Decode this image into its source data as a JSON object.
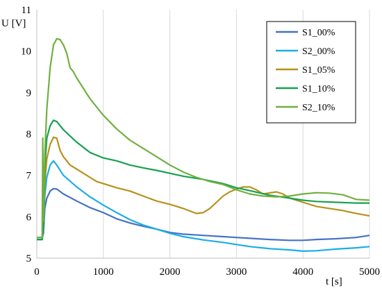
{
  "chart_data": {
    "type": "line",
    "title": "",
    "xlabel": "t [s]",
    "ylabel": "U [V]",
    "xlim": [
      0,
      5000
    ],
    "ylim": [
      5,
      11
    ],
    "xticks": [
      0,
      1000,
      2000,
      3000,
      4000,
      5000
    ],
    "yticks": [
      5,
      6,
      7,
      8,
      9,
      10,
      11
    ],
    "xtick_labels": [
      "0",
      "1000",
      "2000",
      "3000",
      "4000",
      "5000"
    ],
    "ytick_labels": [
      "5",
      "6",
      "7",
      "8",
      "9",
      "10",
      "11"
    ],
    "grid": "vertical",
    "legend": {
      "position": "top-right",
      "entries": [
        "S1_00%",
        "S2_00%",
        "S1_05%",
        "S1_10%",
        "S2_10%"
      ]
    },
    "series": [
      {
        "name": "S1_00%",
        "color": "#4472C4",
        "points": [
          [
            0,
            5.5
          ],
          [
            80,
            5.5
          ],
          [
            100,
            5.6
          ],
          [
            120,
            6.2
          ],
          [
            150,
            6.45
          ],
          [
            200,
            6.62
          ],
          [
            250,
            6.68
          ],
          [
            300,
            6.67
          ],
          [
            400,
            6.55
          ],
          [
            600,
            6.38
          ],
          [
            800,
            6.22
          ],
          [
            1000,
            6.1
          ],
          [
            1200,
            5.95
          ],
          [
            1400,
            5.85
          ],
          [
            1600,
            5.77
          ],
          [
            1800,
            5.7
          ],
          [
            2000,
            5.62
          ],
          [
            2200,
            5.58
          ],
          [
            2500,
            5.55
          ],
          [
            2800,
            5.52
          ],
          [
            3000,
            5.5
          ],
          [
            3200,
            5.48
          ],
          [
            3500,
            5.45
          ],
          [
            3800,
            5.43
          ],
          [
            4000,
            5.43
          ],
          [
            4200,
            5.45
          ],
          [
            4500,
            5.47
          ],
          [
            4800,
            5.5
          ],
          [
            5000,
            5.55
          ]
        ]
      },
      {
        "name": "S2_00%",
        "color": "#1AAEE6",
        "points": [
          [
            0,
            5.45
          ],
          [
            80,
            5.45
          ],
          [
            100,
            5.7
          ],
          [
            120,
            6.5
          ],
          [
            150,
            6.95
          ],
          [
            200,
            7.25
          ],
          [
            250,
            7.35
          ],
          [
            300,
            7.25
          ],
          [
            400,
            7.0
          ],
          [
            600,
            6.72
          ],
          [
            800,
            6.48
          ],
          [
            1000,
            6.28
          ],
          [
            1200,
            6.1
          ],
          [
            1400,
            5.93
          ],
          [
            1600,
            5.8
          ],
          [
            1800,
            5.7
          ],
          [
            2000,
            5.6
          ],
          [
            2200,
            5.52
          ],
          [
            2500,
            5.44
          ],
          [
            2800,
            5.38
          ],
          [
            3000,
            5.33
          ],
          [
            3200,
            5.28
          ],
          [
            3500,
            5.23
          ],
          [
            3800,
            5.2
          ],
          [
            4000,
            5.17
          ],
          [
            4200,
            5.18
          ],
          [
            4500,
            5.22
          ],
          [
            4800,
            5.25
          ],
          [
            5000,
            5.28
          ]
        ]
      },
      {
        "name": "S1_05%",
        "color": "#B8901A",
        "points": [
          [
            0,
            5.45
          ],
          [
            80,
            5.45
          ],
          [
            100,
            5.75
          ],
          [
            120,
            6.8
          ],
          [
            150,
            7.4
          ],
          [
            200,
            7.75
          ],
          [
            250,
            7.92
          ],
          [
            300,
            7.9
          ],
          [
            350,
            7.6
          ],
          [
            400,
            7.45
          ],
          [
            500,
            7.25
          ],
          [
            700,
            7.05
          ],
          [
            900,
            6.85
          ],
          [
            1000,
            6.8
          ],
          [
            1200,
            6.7
          ],
          [
            1400,
            6.62
          ],
          [
            1600,
            6.5
          ],
          [
            1800,
            6.38
          ],
          [
            2000,
            6.3
          ],
          [
            2200,
            6.2
          ],
          [
            2400,
            6.08
          ],
          [
            2500,
            6.1
          ],
          [
            2600,
            6.2
          ],
          [
            2700,
            6.35
          ],
          [
            2800,
            6.5
          ],
          [
            2900,
            6.6
          ],
          [
            3000,
            6.67
          ],
          [
            3100,
            6.72
          ],
          [
            3200,
            6.72
          ],
          [
            3300,
            6.65
          ],
          [
            3400,
            6.55
          ],
          [
            3600,
            6.6
          ],
          [
            3700,
            6.55
          ],
          [
            3800,
            6.45
          ],
          [
            4000,
            6.35
          ],
          [
            4200,
            6.25
          ],
          [
            4400,
            6.2
          ],
          [
            4600,
            6.15
          ],
          [
            4800,
            6.08
          ],
          [
            5000,
            6.02
          ]
        ]
      },
      {
        "name": "S1_10%",
        "color": "#18A050",
        "points": [
          [
            0,
            5.45
          ],
          [
            80,
            5.45
          ],
          [
            100,
            5.8
          ],
          [
            120,
            7.2
          ],
          [
            150,
            7.9
          ],
          [
            200,
            8.2
          ],
          [
            250,
            8.33
          ],
          [
            300,
            8.3
          ],
          [
            400,
            8.1
          ],
          [
            600,
            7.8
          ],
          [
            800,
            7.55
          ],
          [
            1000,
            7.42
          ],
          [
            1200,
            7.35
          ],
          [
            1400,
            7.25
          ],
          [
            1600,
            7.18
          ],
          [
            1800,
            7.12
          ],
          [
            2000,
            7.05
          ],
          [
            2200,
            6.98
          ],
          [
            2500,
            6.9
          ],
          [
            2800,
            6.8
          ],
          [
            3000,
            6.7
          ],
          [
            3200,
            6.63
          ],
          [
            3500,
            6.52
          ],
          [
            3800,
            6.45
          ],
          [
            4000,
            6.4
          ],
          [
            4200,
            6.37
          ],
          [
            4500,
            6.35
          ],
          [
            4800,
            6.33
          ],
          [
            5000,
            6.33
          ]
        ]
      },
      {
        "name": "S2_10%",
        "color": "#6FB040",
        "points": [
          [
            0,
            5.5
          ],
          [
            80,
            5.5
          ],
          [
            90,
            7.9
          ],
          [
            100,
            5.9
          ],
          [
            120,
            7.5
          ],
          [
            150,
            8.6
          ],
          [
            200,
            9.6
          ],
          [
            250,
            10.15
          ],
          [
            300,
            10.3
          ],
          [
            350,
            10.28
          ],
          [
            400,
            10.15
          ],
          [
            450,
            9.95
          ],
          [
            500,
            9.6
          ],
          [
            550,
            9.5
          ],
          [
            600,
            9.35
          ],
          [
            800,
            8.85
          ],
          [
            1000,
            8.45
          ],
          [
            1200,
            8.12
          ],
          [
            1400,
            7.85
          ],
          [
            1600,
            7.65
          ],
          [
            1800,
            7.45
          ],
          [
            2000,
            7.25
          ],
          [
            2200,
            7.08
          ],
          [
            2400,
            6.95
          ],
          [
            2600,
            6.85
          ],
          [
            2800,
            6.78
          ],
          [
            3000,
            6.65
          ],
          [
            3200,
            6.55
          ],
          [
            3400,
            6.5
          ],
          [
            3600,
            6.48
          ],
          [
            3800,
            6.5
          ],
          [
            4000,
            6.55
          ],
          [
            4200,
            6.58
          ],
          [
            4400,
            6.57
          ],
          [
            4600,
            6.53
          ],
          [
            4800,
            6.42
          ],
          [
            5000,
            6.4
          ]
        ]
      }
    ]
  }
}
